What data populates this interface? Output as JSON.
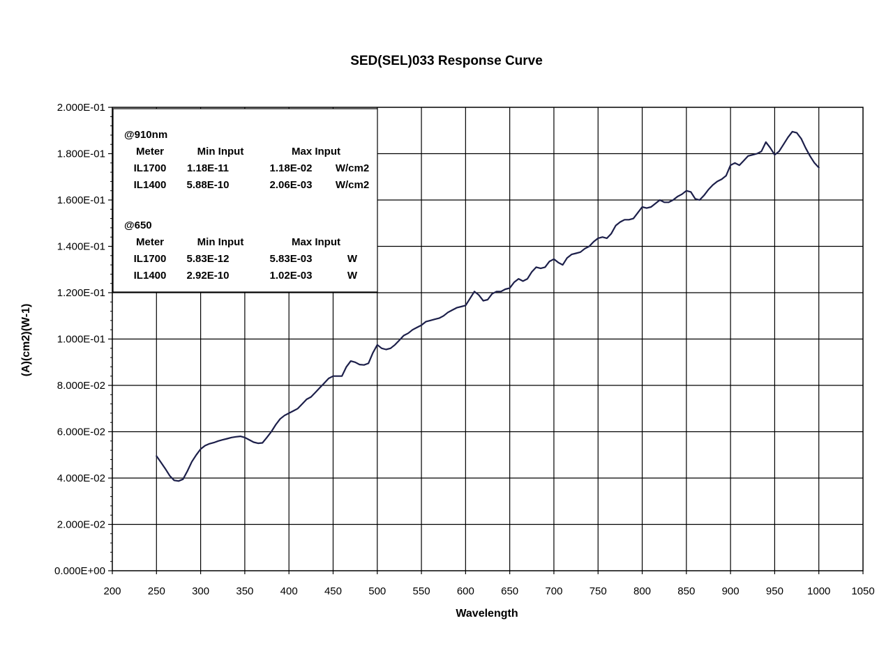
{
  "chart_data": {
    "type": "line",
    "title": "SED(SEL)033 Response Curve",
    "xlabel": "Wavelength",
    "ylabel": "(A)(cm2)(W-1)",
    "xlim": [
      200,
      1050
    ],
    "ylim": [
      0,
      0.2
    ],
    "xticks": [
      "200",
      "250",
      "300",
      "350",
      "400",
      "450",
      "500",
      "550",
      "600",
      "650",
      "700",
      "750",
      "800",
      "850",
      "900",
      "950",
      "1000",
      "1050"
    ],
    "yticks": [
      "0.000E+00",
      "2.000E-02",
      "4.000E-02",
      "6.000E-02",
      "8.000E-02",
      "1.000E-01",
      "1.200E-01",
      "1.400E-01",
      "1.600E-01",
      "1.800E-01",
      "2.000E-01"
    ],
    "grid": true,
    "series": [
      {
        "color": "#1c1f4a",
        "x": [
          250,
          255,
          260,
          265,
          270,
          275,
          280,
          285,
          290,
          295,
          300,
          305,
          310,
          315,
          320,
          325,
          330,
          335,
          340,
          345,
          350,
          355,
          360,
          365,
          370,
          375,
          380,
          385,
          390,
          395,
          400,
          405,
          410,
          415,
          420,
          425,
          430,
          435,
          440,
          445,
          450,
          455,
          460,
          465,
          470,
          475,
          480,
          485,
          490,
          495,
          500,
          505,
          510,
          515,
          520,
          525,
          530,
          535,
          540,
          545,
          550,
          555,
          560,
          565,
          570,
          575,
          580,
          585,
          590,
          595,
          600,
          605,
          610,
          615,
          620,
          625,
          630,
          635,
          640,
          645,
          650,
          655,
          660,
          665,
          670,
          675,
          680,
          685,
          690,
          695,
          700,
          705,
          710,
          715,
          720,
          725,
          730,
          735,
          740,
          745,
          750,
          755,
          760,
          765,
          770,
          775,
          780,
          785,
          790,
          795,
          800,
          805,
          810,
          815,
          820,
          825,
          830,
          835,
          840,
          845,
          850,
          855,
          860,
          865,
          870,
          875,
          880,
          885,
          890,
          895,
          900,
          905,
          910,
          915,
          920,
          925,
          930,
          935,
          940,
          945,
          950,
          955,
          960,
          965,
          970,
          975,
          980,
          985,
          990,
          995,
          1000
        ],
        "y": [
          0.0495,
          0.0468,
          0.044,
          0.041,
          0.039,
          0.0387,
          0.0395,
          0.043,
          0.047,
          0.05,
          0.0525,
          0.054,
          0.0548,
          0.0553,
          0.056,
          0.0565,
          0.057,
          0.0575,
          0.0578,
          0.058,
          0.0575,
          0.0565,
          0.0555,
          0.055,
          0.0552,
          0.0575,
          0.06,
          0.063,
          0.0655,
          0.067,
          0.068,
          0.069,
          0.07,
          0.072,
          0.074,
          0.075,
          0.077,
          0.079,
          0.081,
          0.083,
          0.084,
          0.084,
          0.084,
          0.088,
          0.0905,
          0.09,
          0.089,
          0.0888,
          0.0895,
          0.094,
          0.0975,
          0.096,
          0.0955,
          0.096,
          0.0975,
          0.0995,
          0.1015,
          0.1025,
          0.104,
          0.105,
          0.106,
          0.1075,
          0.108,
          0.1085,
          0.109,
          0.11,
          0.1115,
          0.1125,
          0.1135,
          0.114,
          0.1145,
          0.1175,
          0.1205,
          0.119,
          0.1165,
          0.117,
          0.1195,
          0.1205,
          0.1205,
          0.1215,
          0.122,
          0.1245,
          0.126,
          0.125,
          0.126,
          0.129,
          0.131,
          0.1305,
          0.131,
          0.1335,
          0.1345,
          0.133,
          0.132,
          0.135,
          0.1365,
          0.137,
          0.1375,
          0.139,
          0.14,
          0.142,
          0.1435,
          0.144,
          0.1435,
          0.1455,
          0.149,
          0.1505,
          0.1515,
          0.1515,
          0.152,
          0.1545,
          0.157,
          0.1565,
          0.157,
          0.1585,
          0.16,
          0.159,
          0.159,
          0.16,
          0.1615,
          0.1625,
          0.164,
          0.1635,
          0.1605,
          0.16,
          0.162,
          0.1645,
          0.1665,
          0.168,
          0.169,
          0.1705,
          0.175,
          0.176,
          0.175,
          0.177,
          0.179,
          0.1795,
          0.18,
          0.181,
          0.185,
          0.1825,
          0.1795,
          0.181,
          0.184,
          0.187,
          0.1895,
          0.189,
          0.1865,
          0.1825,
          0.179,
          0.176,
          0.174
        ]
      }
    ],
    "legend_table": {
      "position": "top-left",
      "sections": [
        {
          "title": "@910nm",
          "headers": [
            "Meter",
            "Min Input",
            "Max Input"
          ],
          "rows": [
            [
              "IL1700",
              "1.18E-11",
              "1.18E-02",
              "W/cm2"
            ],
            [
              "IL1400",
              "5.88E-10",
              "2.06E-03",
              "W/cm2"
            ]
          ]
        },
        {
          "title": "@650",
          "headers": [
            "Meter",
            "Min Input",
            "Max Input"
          ],
          "rows": [
            [
              "IL1700",
              "5.83E-12",
              "5.83E-03",
              "W"
            ],
            [
              "IL1400",
              "2.92E-10",
              "1.02E-03",
              "W"
            ]
          ]
        }
      ]
    }
  }
}
